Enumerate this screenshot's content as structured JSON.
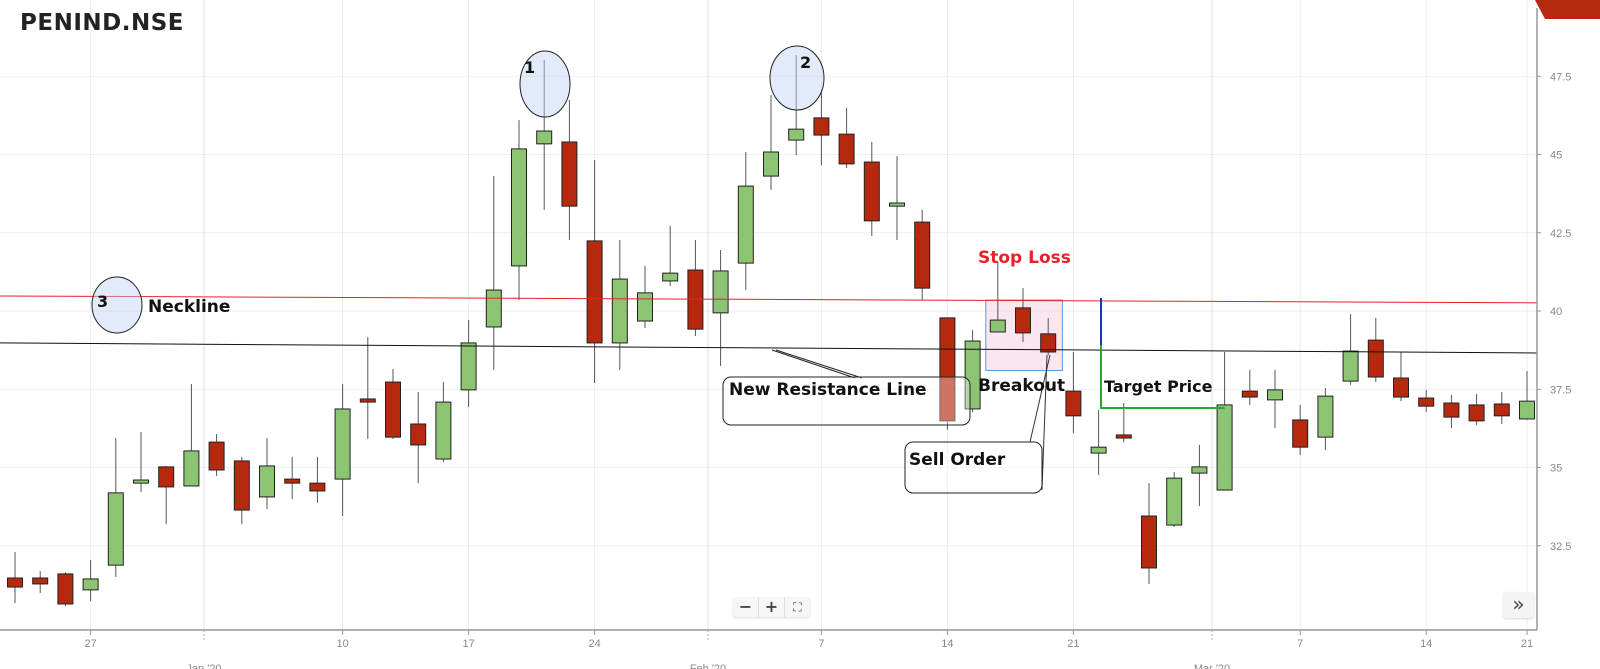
{
  "header": {
    "symbol": "PENIND.NSE"
  },
  "controls": {
    "zoom_out": "−",
    "zoom_in": "+",
    "fullscreen": "⛶",
    "scroll_right": "»"
  },
  "annotations": {
    "peak1": "1",
    "peak2": "2",
    "point3": "3",
    "neckline": "Neckline",
    "stop_loss": "Stop Loss",
    "breakout": "Breakout",
    "new_resistance": "New Resistance Line",
    "sell_order": "Sell Order",
    "target_price": "Target Price"
  },
  "colors": {
    "up": "#8dc473",
    "down": "#b52a0e",
    "neckline": "#e8202a",
    "resistance": "#111111",
    "stop_loss_text": "#e8202a",
    "breakout_box": "#5b9bd5",
    "target_vertical": "#2030c0",
    "target_line": "#22aa33"
  },
  "chart_data": {
    "type": "candlestick",
    "title": "PENIND.NSE",
    "ylim": [
      29.8,
      49.9
    ],
    "y_ticks": [
      32.5,
      35,
      37.5,
      40,
      42.5,
      45,
      47.5
    ],
    "y_tick_labels": [
      "32.5",
      "35",
      "37.5",
      "40",
      "42.5",
      "45",
      "47.5"
    ],
    "x_tick_labels": [
      {
        "label": "27",
        "index": 3
      },
      {
        "label": "10",
        "index": 13
      },
      {
        "label": "17",
        "index": 18
      },
      {
        "label": "24",
        "index": 23
      },
      {
        "label": "7",
        "index": 32
      },
      {
        "label": "14",
        "index": 37
      },
      {
        "label": "21",
        "index": 42
      },
      {
        "label": "7",
        "index": 51
      },
      {
        "label": "14",
        "index": 56
      },
      {
        "label": "21",
        "index": 60
      }
    ],
    "month_labels": [
      {
        "label": "Jan '20",
        "index": 7.5
      },
      {
        "label": "Feb '20",
        "index": 27.5
      },
      {
        "label": "Mar '20",
        "index": 47.5
      }
    ],
    "grid": true,
    "candles": [
      [
        31.47,
        32.3,
        30.67,
        31.18
      ],
      [
        31.47,
        31.69,
        30.99,
        31.28
      ],
      [
        31.6,
        31.65,
        30.58,
        30.64
      ],
      [
        31.09,
        32.04,
        30.73,
        31.44
      ],
      [
        31.88,
        35.94,
        31.5,
        34.19
      ],
      [
        34.5,
        36.13,
        34.22,
        34.6
      ],
      [
        35.02,
        35.05,
        33.19,
        34.38
      ],
      [
        34.41,
        37.67,
        34.4,
        35.53
      ],
      [
        35.81,
        36.07,
        34.73,
        34.92
      ],
      [
        35.21,
        35.34,
        33.19,
        33.64
      ],
      [
        34.06,
        35.94,
        33.67,
        35.05
      ],
      [
        34.63,
        35.34,
        33.99,
        34.5
      ],
      [
        34.5,
        35.34,
        33.87,
        34.25
      ],
      [
        34.63,
        37.67,
        33.45,
        36.87
      ],
      [
        37.19,
        39.17,
        35.91,
        37.09
      ],
      [
        37.73,
        38.15,
        35.91,
        35.97
      ],
      [
        36.39,
        37.41,
        34.5,
        35.72
      ],
      [
        35.27,
        37.73,
        35.18,
        37.09
      ],
      [
        37.48,
        39.71,
        36.93,
        38.98
      ],
      [
        39.49,
        44.31,
        38.12,
        40.67
      ],
      [
        41.44,
        46.1,
        40.35,
        45.18
      ],
      [
        45.34,
        48.02,
        43.23,
        45.75
      ],
      [
        45.4,
        46.74,
        42.27,
        43.35
      ],
      [
        42.24,
        44.82,
        37.7,
        38.98
      ],
      [
        38.98,
        42.27,
        38.12,
        41.02
      ],
      [
        39.68,
        41.44,
        39.46,
        40.58
      ],
      [
        40.96,
        42.72,
        40.8,
        41.21
      ],
      [
        41.31,
        42.27,
        39.2,
        39.42
      ],
      [
        39.94,
        41.95,
        38.24,
        41.28
      ],
      [
        41.53,
        45.08,
        40.67,
        43.99
      ],
      [
        44.31,
        46.9,
        43.87,
        45.08
      ],
      [
        45.46,
        48.18,
        44.98,
        45.81
      ],
      [
        46.17,
        47.06,
        44.66,
        45.62
      ],
      [
        45.65,
        46.49,
        44.57,
        44.7
      ],
      [
        44.76,
        45.4,
        42.4,
        42.88
      ],
      [
        43.35,
        44.95,
        42.27,
        43.45
      ],
      [
        42.84,
        43.23,
        40.35,
        40.73
      ],
      [
        39.78,
        39.78,
        36.2,
        36.49
      ],
      [
        36.87,
        39.39,
        36.77,
        39.04
      ],
      [
        39.33,
        41.57,
        39.33,
        39.71
      ],
      [
        40.1,
        40.73,
        39.01,
        39.3
      ],
      [
        39.27,
        39.78,
        38.59,
        38.69
      ],
      [
        37.44,
        38.69,
        36.1,
        36.65
      ],
      [
        35.46,
        36.84,
        34.76,
        35.65
      ],
      [
        36.04,
        37.06,
        35.81,
        35.94
      ],
      [
        33.45,
        34.5,
        31.28,
        31.79
      ],
      [
        33.16,
        34.86,
        33.1,
        34.66
      ],
      [
        34.82,
        35.72,
        33.77,
        35.02
      ],
      [
        34.28,
        38.69,
        34.28,
        37.0
      ],
      [
        37.44,
        38.12,
        37.0,
        37.25
      ],
      [
        37.16,
        38.12,
        36.26,
        37.48
      ],
      [
        36.52,
        37.0,
        35.4,
        35.65
      ],
      [
        35.97,
        37.54,
        35.56,
        37.28
      ],
      [
        37.76,
        39.9,
        37.64,
        38.72
      ],
      [
        39.07,
        39.78,
        37.73,
        37.89
      ],
      [
        37.86,
        38.69,
        37.12,
        37.25
      ],
      [
        37.22,
        37.48,
        36.77,
        36.96
      ],
      [
        37.06,
        37.32,
        36.26,
        36.61
      ],
      [
        37.0,
        37.35,
        36.36,
        36.49
      ],
      [
        37.03,
        37.41,
        36.39,
        36.65
      ],
      [
        36.55,
        38.08,
        36.52,
        37.12
      ]
    ],
    "candle_fields": [
      "open",
      "high",
      "low",
      "close"
    ],
    "trendlines": [
      {
        "name": "Neckline",
        "from": [
          0,
          40.48
        ],
        "to": [
          60.5,
          40.26
        ]
      },
      {
        "name": "New Resistance Line",
        "from": [
          0,
          38.98
        ],
        "to": [
          60.5,
          38.66
        ]
      }
    ],
    "stop_loss_zone": {
      "from_index": 39,
      "to_index": 42,
      "high": 40.35,
      "low": 38.1
    },
    "target_price_level": 36.9
  }
}
